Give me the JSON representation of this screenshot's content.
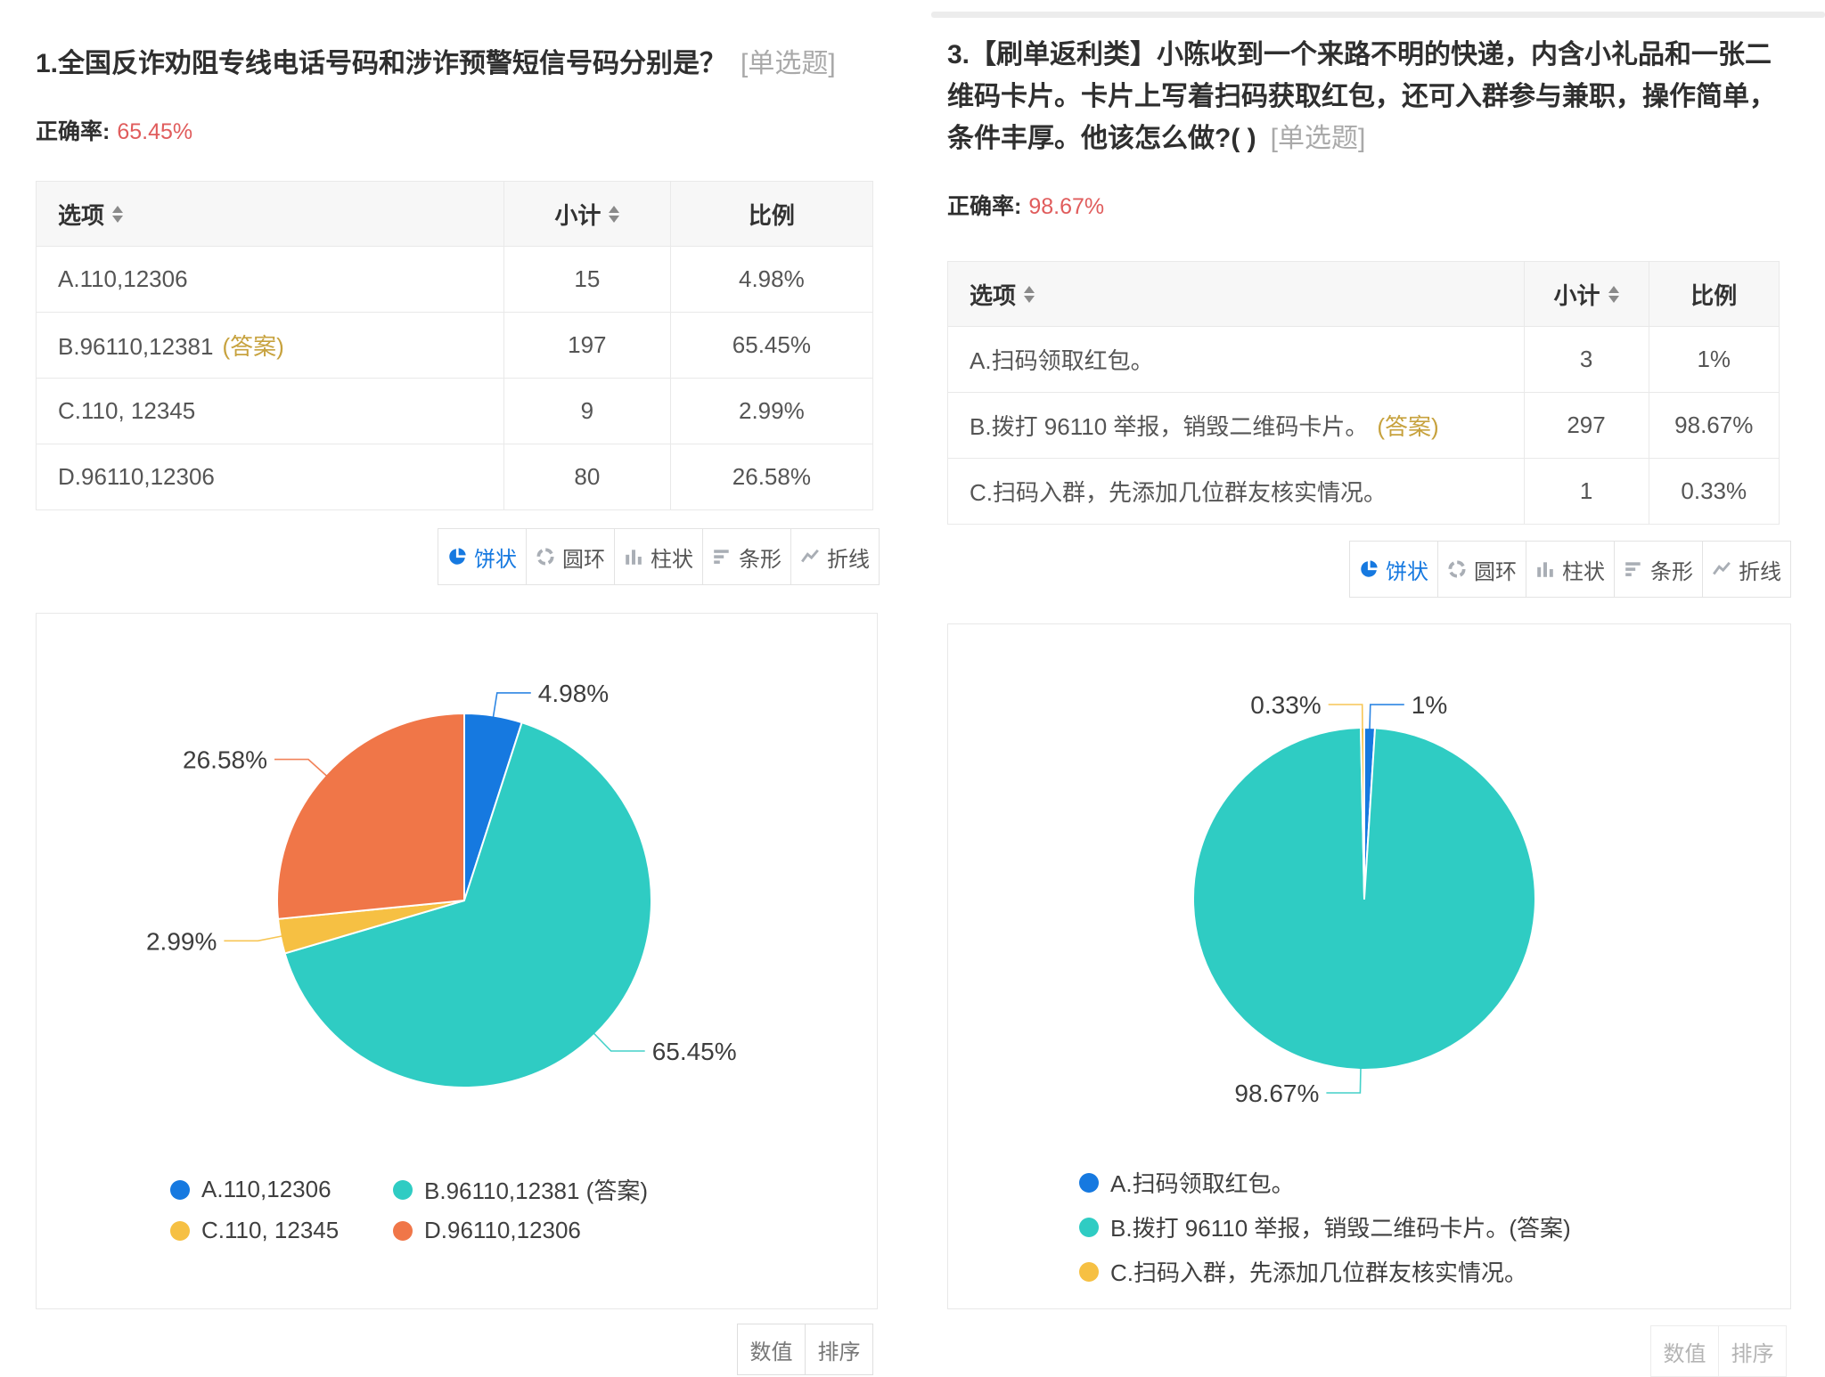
{
  "colors": {
    "accent_blue": "#1679E0",
    "teal": "#2FCCC3",
    "yellow": "#F6C043",
    "orange": "#F07648",
    "answer_gold": "#C7A23E",
    "accuracy_red": "#E05C5C"
  },
  "questions": [
    {
      "title": "1.全国反诈劝阻专线电话号码和涉诈预警短信号码分别是？",
      "tag": "[单选题]",
      "accuracy_label": "正确率:",
      "accuracy": "65.45%",
      "table": {
        "headers": [
          {
            "label": "选项",
            "sortable": true
          },
          {
            "label": "小计",
            "sortable": true
          },
          {
            "label": "比例",
            "sortable": false
          }
        ],
        "rows": [
          {
            "option": "A.110,12306",
            "count": "15",
            "pct": "4.98%"
          },
          {
            "option": "B.96110,12381",
            "answer_tag": "(答案)",
            "count": "197",
            "pct": "65.45%"
          },
          {
            "option": "C.110, 12345",
            "count": "9",
            "pct": "2.99%"
          },
          {
            "option": "D.96110,12306",
            "count": "80",
            "pct": "26.58%"
          }
        ]
      },
      "toggles": [
        {
          "label": "饼状",
          "icon": "pie-chart",
          "active": true
        },
        {
          "label": "圆环",
          "icon": "donut-chart",
          "active": false
        },
        {
          "label": "柱状",
          "icon": "column-chart",
          "active": false
        },
        {
          "label": "条形",
          "icon": "bar-chart",
          "active": false
        },
        {
          "label": "折线",
          "icon": "line-chart",
          "active": false
        }
      ],
      "footer": [
        "数值",
        "排序"
      ]
    },
    {
      "title": "3.【刷单返利类】小陈收到一个来路不明的快递，内含小礼品和一张二维码卡片。卡片上写着扫码获取红包，还可入群参与兼职，操作简单，条件丰厚。他该怎么做?( )",
      "tag": "[单选题]",
      "accuracy_label": "正确率:",
      "accuracy": "98.67%",
      "table": {
        "headers": [
          {
            "label": "选项",
            "sortable": true
          },
          {
            "label": "小计",
            "sortable": true
          },
          {
            "label": "比例",
            "sortable": false
          }
        ],
        "rows": [
          {
            "option": "A.扫码领取红包。",
            "count": "3",
            "pct": "1%"
          },
          {
            "option": "B.拨打 96110 举报，销毁二维码卡片。",
            "answer_tag": "(答案)",
            "count": "297",
            "pct": "98.67%"
          },
          {
            "option": "C.扫码入群，先添加几位群友核实情况。",
            "count": "1",
            "pct": "0.33%"
          }
        ]
      },
      "toggles": [
        {
          "label": "饼状",
          "icon": "pie-chart",
          "active": true
        },
        {
          "label": "圆环",
          "icon": "donut-chart",
          "active": false
        },
        {
          "label": "柱状",
          "icon": "column-chart",
          "active": false
        },
        {
          "label": "条形",
          "icon": "bar-chart",
          "active": false
        },
        {
          "label": "折线",
          "icon": "line-chart",
          "active": false
        }
      ],
      "footer": [
        "数值",
        "排序"
      ]
    }
  ],
  "chart_data": [
    {
      "type": "pie",
      "title": "",
      "labels": [
        "A.110,12306",
        "B.96110,12381 (答案)",
        "C.110, 12345",
        "D.96110,12306"
      ],
      "values": [
        4.98,
        65.45,
        2.99,
        26.58
      ],
      "counts": [
        15,
        197,
        9,
        80
      ],
      "pct_labels": [
        "4.98%",
        "65.45%",
        "2.99%",
        "26.58%"
      ],
      "colors": [
        "#1679E0",
        "#2FCCC3",
        "#F6C043",
        "#F07648"
      ],
      "legend_position": "bottom",
      "start_angle_deg": -90,
      "direction": "clockwise"
    },
    {
      "type": "pie",
      "title": "",
      "labels": [
        "A.扫码领取红包。",
        "B.拨打 96110 举报，销毁二维码卡片。(答案)",
        "C.扫码入群，先添加几位群友核实情况。"
      ],
      "values": [
        1,
        98.67,
        0.33
      ],
      "counts": [
        3,
        297,
        1
      ],
      "pct_labels": [
        "1%",
        "98.67%",
        "0.33%"
      ],
      "colors": [
        "#1679E0",
        "#2FCCC3",
        "#F6C043"
      ],
      "legend_position": "bottom",
      "start_angle_deg": -90,
      "direction": "clockwise"
    }
  ]
}
